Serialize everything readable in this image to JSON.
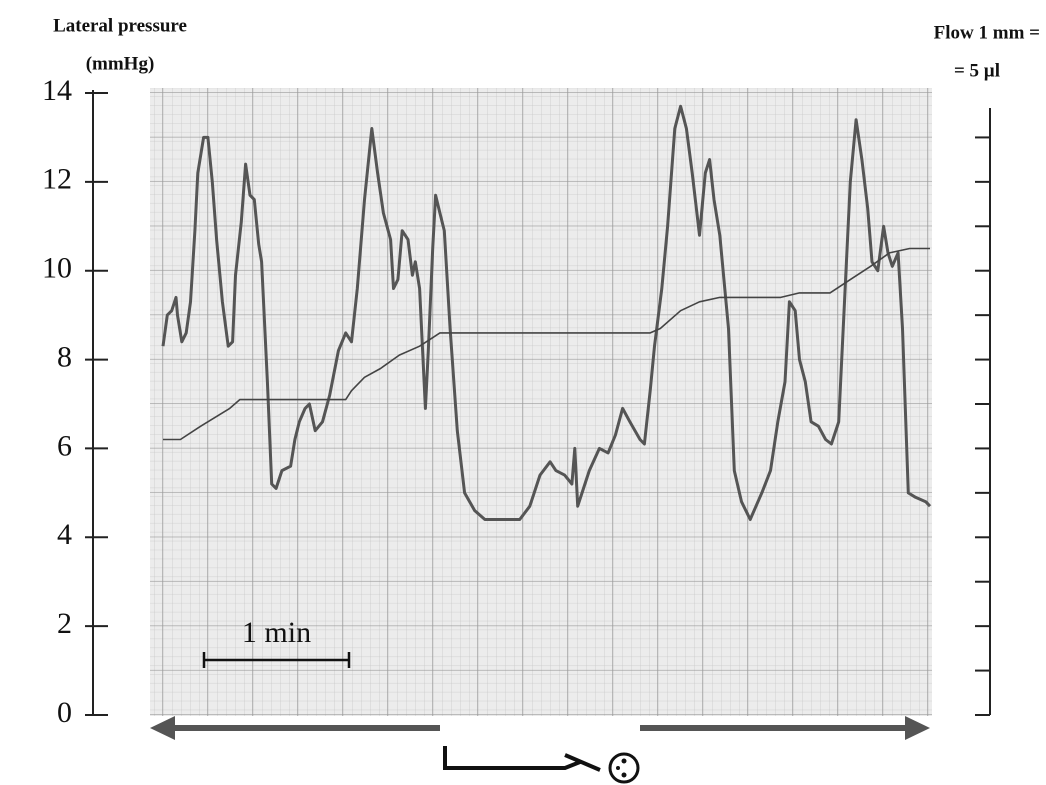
{
  "chart_data": {
    "type": "line",
    "y_label_lines": [
      "Lateral pressure",
      "(mmHg)"
    ],
    "y2_label_lines": [
      "Flow 1 mm =",
      "= 5  µl"
    ],
    "xlim": [
      0,
      5.29
    ],
    "ylim": [
      0,
      14
    ],
    "yticks": [
      0,
      2,
      4,
      6,
      8,
      10,
      12,
      14
    ],
    "y2lim": [
      0,
      14
    ],
    "y2ticks": [
      0,
      1,
      2,
      3,
      4,
      5,
      6,
      7,
      8,
      9,
      10,
      11,
      12,
      13
    ],
    "scale_bar": {
      "label": "1 min",
      "value": 1
    },
    "series": [
      {
        "color": "#555555",
        "x": [
          0,
          0.03,
          0.06,
          0.09,
          0.1,
          0.13,
          0.16,
          0.19,
          0.22,
          0.24,
          0.28,
          0.31,
          0.34,
          0.37,
          0.41,
          0.45,
          0.48,
          0.5,
          0.54,
          0.57,
          0.6,
          0.63,
          0.66,
          0.68,
          0.72,
          0.75,
          0.78,
          0.82,
          0.88,
          0.91,
          0.94,
          0.98,
          1.01,
          1.05,
          1.1,
          1.15,
          1.21,
          1.26,
          1.3,
          1.34,
          1.39,
          1.44,
          1.48,
          1.52,
          1.57,
          1.59,
          1.62,
          1.65,
          1.69,
          1.72,
          1.74,
          1.77,
          1.81,
          1.83,
          1.86,
          1.88,
          1.91,
          1.94,
          1.98,
          2.03,
          2.08,
          2.15,
          2.22,
          2.32,
          2.46,
          2.53,
          2.6,
          2.67,
          2.71,
          2.77,
          2.82,
          2.84,
          2.86,
          2.9,
          2.94,
          3.01,
          3.07,
          3.12,
          3.17,
          3.22,
          3.29,
          3.32,
          3.36,
          3.39,
          3.44,
          3.48,
          3.53,
          3.57,
          3.61,
          3.65,
          3.7,
          3.74,
          3.77,
          3.8,
          3.84,
          3.9,
          3.94,
          3.99,
          4.05,
          4.09,
          4.13,
          4.19,
          4.24,
          4.29,
          4.32,
          4.36,
          4.39,
          4.43,
          4.47,
          4.52,
          4.57,
          4.61,
          4.66,
          4.7,
          4.74,
          4.78,
          4.82,
          4.86,
          4.89,
          4.93,
          4.97,
          5.0,
          5.03,
          5.07,
          5.1,
          5.14,
          5.19,
          5.26,
          5.29
        ],
        "values": [
          8.3,
          9.0,
          9.1,
          9.4,
          9.0,
          8.4,
          8.6,
          9.3,
          10.9,
          12.2,
          13.0,
          13.0,
          12.0,
          10.7,
          9.3,
          8.3,
          8.4,
          9.9,
          11.1,
          12.4,
          11.7,
          11.6,
          10.6,
          10.2,
          7.5,
          5.2,
          5.1,
          5.5,
          5.6,
          6.2,
          6.6,
          6.9,
          7.0,
          6.4,
          6.6,
          7.2,
          8.2,
          8.6,
          8.4,
          9.6,
          11.6,
          13.2,
          12.2,
          11.3,
          10.7,
          9.6,
          9.8,
          10.9,
          10.7,
          9.9,
          10.2,
          9.6,
          6.9,
          8.2,
          10.5,
          11.7,
          11.3,
          10.9,
          8.7,
          6.4,
          5.0,
          4.6,
          4.4,
          4.4,
          4.4,
          4.7,
          5.4,
          5.7,
          5.5,
          5.4,
          5.2,
          6.0,
          4.7,
          5.1,
          5.5,
          6.0,
          5.9,
          6.3,
          6.9,
          6.6,
          6.2,
          6.1,
          7.3,
          8.3,
          9.6,
          11.0,
          13.2,
          13.7,
          13.2,
          12.2,
          10.8,
          12.2,
          12.5,
          11.6,
          10.8,
          8.7,
          5.5,
          4.8,
          4.4,
          4.7,
          5.0,
          5.5,
          6.6,
          7.5,
          9.3,
          9.1,
          8.0,
          7.5,
          6.6,
          6.5,
          6.2,
          6.1,
          6.6,
          9.3,
          12.0,
          13.4,
          12.5,
          11.4,
          10.2,
          10.0,
          11.0,
          10.4,
          10.1,
          10.4,
          8.7,
          5.0,
          4.9,
          4.8,
          4.7
        ]
      },
      {
        "color": "#444444",
        "axis": "y2",
        "x": [
          0,
          0.12,
          0.26,
          0.36,
          0.46,
          0.53,
          0.67,
          0.94,
          1.26,
          1.3,
          1.39,
          1.5,
          1.63,
          1.77,
          1.91,
          2.05,
          2.67,
          3.36,
          3.43,
          3.57,
          3.7,
          3.84,
          4.26,
          4.39,
          4.6,
          4.74,
          4.88,
          5.01,
          5.15,
          5.29
        ],
        "values": [
          6.2,
          6.2,
          6.5,
          6.7,
          6.9,
          7.1,
          7.1,
          7.1,
          7.1,
          7.3,
          7.6,
          7.8,
          8.1,
          8.3,
          8.6,
          8.6,
          8.6,
          8.6,
          8.7,
          9.1,
          9.3,
          9.4,
          9.4,
          9.5,
          9.5,
          9.8,
          10.1,
          10.4,
          10.5,
          10.5
        ]
      }
    ]
  }
}
